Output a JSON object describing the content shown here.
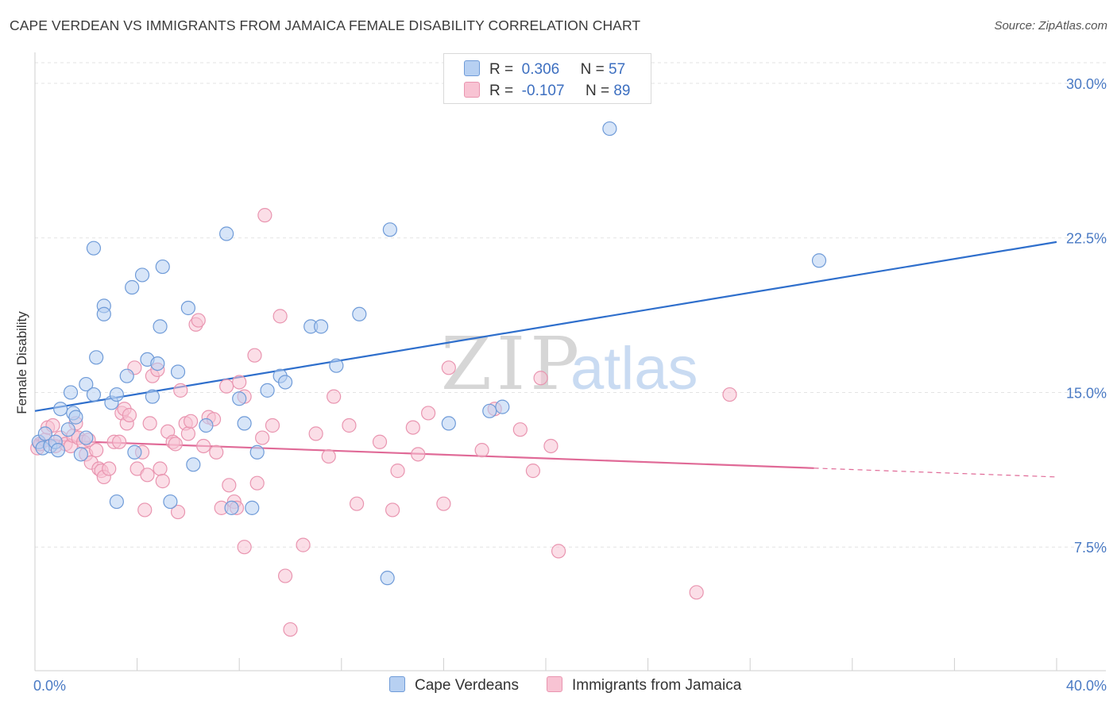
{
  "title": "CAPE VERDEAN VS IMMIGRANTS FROM JAMAICA FEMALE DISABILITY CORRELATION CHART",
  "source": "Source: ZipAtlas.com",
  "watermark": {
    "zip": "ZIP",
    "atlas": "atlas"
  },
  "legend": {
    "rows": [
      {
        "r_label": "R =",
        "r_value": "0.306",
        "n_label": "N =",
        "n_value": "57"
      },
      {
        "r_label": "R =",
        "r_value": "-0.107",
        "n_label": "N =",
        "n_value": "89"
      }
    ]
  },
  "colors": {
    "blue_fill": "#b7d0f2",
    "blue_stroke": "#6f9bd8",
    "blue_line": "#2f6fcc",
    "pink_fill": "#f8c3d3",
    "pink_stroke": "#e995b0",
    "pink_line": "#e06a97",
    "grid": "#e3e3e3",
    "tick_label": "#4a7ac4"
  },
  "chart_data": {
    "type": "scatter",
    "ylabel": "Female Disability",
    "xlim": [
      0,
      40
    ],
    "ylim": [
      1.5,
      31.5
    ],
    "x_tick_labels": [
      "0.0%",
      "40.0%"
    ],
    "y_ticks": [
      7.5,
      15.0,
      22.5,
      30.0
    ],
    "y_tick_labels": [
      "7.5%",
      "15.0%",
      "22.5%",
      "30.0%"
    ],
    "grid": "horizontal dashed",
    "series": [
      {
        "name": "Cape Verdeans",
        "trend": {
          "x": [
            0,
            40
          ],
          "y": [
            14.1,
            22.3
          ],
          "solid_to": 40
        },
        "points": [
          [
            0.15,
            12.6
          ],
          [
            0.3,
            12.3
          ],
          [
            0.4,
            13.0
          ],
          [
            0.6,
            12.4
          ],
          [
            0.8,
            12.6
          ],
          [
            0.9,
            12.2
          ],
          [
            1.0,
            14.2
          ],
          [
            1.3,
            13.2
          ],
          [
            1.4,
            15.0
          ],
          [
            1.5,
            14.0
          ],
          [
            1.6,
            13.8
          ],
          [
            1.8,
            12.0
          ],
          [
            2.0,
            12.8
          ],
          [
            2.0,
            15.4
          ],
          [
            2.3,
            22.0
          ],
          [
            2.3,
            14.9
          ],
          [
            2.4,
            16.7
          ],
          [
            2.7,
            19.2
          ],
          [
            2.7,
            18.8
          ],
          [
            3.0,
            14.5
          ],
          [
            3.2,
            14.9
          ],
          [
            3.2,
            9.7
          ],
          [
            3.6,
            15.8
          ],
          [
            3.8,
            20.1
          ],
          [
            3.9,
            12.1
          ],
          [
            4.2,
            20.7
          ],
          [
            4.4,
            16.6
          ],
          [
            4.6,
            14.8
          ],
          [
            4.8,
            16.4
          ],
          [
            4.9,
            18.2
          ],
          [
            5.0,
            21.1
          ],
          [
            5.3,
            9.7
          ],
          [
            5.6,
            16.0
          ],
          [
            6.0,
            19.1
          ],
          [
            6.2,
            11.5
          ],
          [
            6.7,
            13.4
          ],
          [
            7.5,
            22.7
          ],
          [
            7.7,
            9.4
          ],
          [
            8.0,
            14.7
          ],
          [
            8.2,
            13.5
          ],
          [
            8.5,
            9.4
          ],
          [
            8.7,
            12.1
          ],
          [
            9.1,
            15.1
          ],
          [
            9.6,
            15.8
          ],
          [
            9.8,
            15.5
          ],
          [
            10.8,
            18.2
          ],
          [
            11.2,
            18.2
          ],
          [
            11.8,
            16.3
          ],
          [
            12.7,
            18.8
          ],
          [
            13.8,
            6.0
          ],
          [
            13.9,
            22.9
          ],
          [
            16.2,
            13.5
          ],
          [
            17.8,
            14.1
          ],
          [
            18.3,
            14.3
          ],
          [
            22.5,
            27.8
          ],
          [
            30.7,
            21.4
          ]
        ]
      },
      {
        "name": "Immigrants from Jamaica",
        "trend": {
          "x": [
            0,
            40
          ],
          "y": [
            12.7,
            10.9
          ],
          "solid_to": 30.5
        },
        "points": [
          [
            0.1,
            12.3
          ],
          [
            0.2,
            12.5
          ],
          [
            0.4,
            12.7
          ],
          [
            0.5,
            13.3
          ],
          [
            0.7,
            13.4
          ],
          [
            0.8,
            12.4
          ],
          [
            1.0,
            12.8
          ],
          [
            1.2,
            12.5
          ],
          [
            1.4,
            12.4
          ],
          [
            1.5,
            12.9
          ],
          [
            1.6,
            13.5
          ],
          [
            1.7,
            12.8
          ],
          [
            1.9,
            12.6
          ],
          [
            2.0,
            12.0
          ],
          [
            2.1,
            12.7
          ],
          [
            2.2,
            11.6
          ],
          [
            2.4,
            12.2
          ],
          [
            2.5,
            11.3
          ],
          [
            2.6,
            11.2
          ],
          [
            2.7,
            10.9
          ],
          [
            2.9,
            11.3
          ],
          [
            3.1,
            12.6
          ],
          [
            3.3,
            12.6
          ],
          [
            3.4,
            14.0
          ],
          [
            3.5,
            14.2
          ],
          [
            3.6,
            13.5
          ],
          [
            3.7,
            13.9
          ],
          [
            3.9,
            16.2
          ],
          [
            4.0,
            11.3
          ],
          [
            4.2,
            12.1
          ],
          [
            4.3,
            9.3
          ],
          [
            4.4,
            11.0
          ],
          [
            4.5,
            13.5
          ],
          [
            4.6,
            15.8
          ],
          [
            4.8,
            16.1
          ],
          [
            4.9,
            11.3
          ],
          [
            5.0,
            10.7
          ],
          [
            5.2,
            13.1
          ],
          [
            5.4,
            12.6
          ],
          [
            5.5,
            12.5
          ],
          [
            5.6,
            9.2
          ],
          [
            5.7,
            15.1
          ],
          [
            5.9,
            13.5
          ],
          [
            6.0,
            13.0
          ],
          [
            6.1,
            13.6
          ],
          [
            6.3,
            18.3
          ],
          [
            6.4,
            18.5
          ],
          [
            6.6,
            12.4
          ],
          [
            6.8,
            13.8
          ],
          [
            7.0,
            13.7
          ],
          [
            7.1,
            12.1
          ],
          [
            7.3,
            9.4
          ],
          [
            7.5,
            15.3
          ],
          [
            7.6,
            10.5
          ],
          [
            7.8,
            9.7
          ],
          [
            7.9,
            9.4
          ],
          [
            8.0,
            15.5
          ],
          [
            8.2,
            14.8
          ],
          [
            8.2,
            7.5
          ],
          [
            8.6,
            16.8
          ],
          [
            8.7,
            10.6
          ],
          [
            8.9,
            12.8
          ],
          [
            9.0,
            23.6
          ],
          [
            9.3,
            13.4
          ],
          [
            9.6,
            18.7
          ],
          [
            9.8,
            6.1
          ],
          [
            10.0,
            3.5
          ],
          [
            10.5,
            7.6
          ],
          [
            11.0,
            13.0
          ],
          [
            11.5,
            11.9
          ],
          [
            11.7,
            14.8
          ],
          [
            12.3,
            13.4
          ],
          [
            12.6,
            9.6
          ],
          [
            13.5,
            12.6
          ],
          [
            14.0,
            9.3
          ],
          [
            14.2,
            11.2
          ],
          [
            14.8,
            13.3
          ],
          [
            15.0,
            12.0
          ],
          [
            15.4,
            14.0
          ],
          [
            16.0,
            9.6
          ],
          [
            16.2,
            16.2
          ],
          [
            17.5,
            12.2
          ],
          [
            18.0,
            14.2
          ],
          [
            19.0,
            13.2
          ],
          [
            19.5,
            11.2
          ],
          [
            19.8,
            15.7
          ],
          [
            20.2,
            12.4
          ],
          [
            20.5,
            7.3
          ],
          [
            25.9,
            5.3
          ],
          [
            27.2,
            14.9
          ]
        ]
      }
    ]
  },
  "bottom_legend": [
    "Cape Verdeans",
    "Immigrants from Jamaica"
  ]
}
